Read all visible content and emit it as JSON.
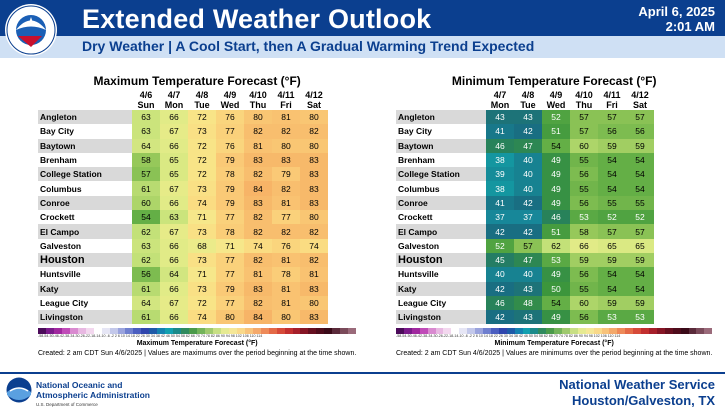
{
  "header": {
    "title": "Extended Weather Outlook",
    "date": "April 6, 2025",
    "time": "2:01 AM",
    "subtitle": "Dry Weather |  A Cool Start, then A Gradual Warming Trend Expected",
    "logo_text": "NATIONAL WEATHER SERVICE"
  },
  "max_panel": {
    "title": "Maximum Temperature Forecast (°F)",
    "dates": [
      "4/6",
      "4/7",
      "4/8",
      "4/9",
      "4/10",
      "4/11",
      "4/12"
    ],
    "days": [
      "Sun",
      "Mon",
      "Tue",
      "Wed",
      "Thu",
      "Fri",
      "Sat"
    ],
    "rows": [
      {
        "city": "Angleton",
        "values": [
          63,
          66,
          72,
          76,
          80,
          81,
          80
        ]
      },
      {
        "city": "Bay City",
        "values": [
          63,
          67,
          73,
          77,
          82,
          82,
          82
        ]
      },
      {
        "city": "Baytown",
        "values": [
          64,
          66,
          72,
          76,
          81,
          80,
          80
        ]
      },
      {
        "city": "Brenham",
        "values": [
          58,
          65,
          72,
          79,
          83,
          83,
          83
        ]
      },
      {
        "city": "College Station",
        "values": [
          57,
          65,
          72,
          78,
          82,
          79,
          83
        ]
      },
      {
        "city": "Columbus",
        "values": [
          61,
          67,
          73,
          79,
          84,
          82,
          83
        ]
      },
      {
        "city": "Conroe",
        "values": [
          60,
          66,
          74,
          79,
          83,
          81,
          83
        ]
      },
      {
        "city": "Crockett",
        "values": [
          54,
          63,
          71,
          77,
          82,
          77,
          80
        ]
      },
      {
        "city": "El Campo",
        "values": [
          62,
          67,
          73,
          78,
          82,
          82,
          82
        ]
      },
      {
        "city": "Galveston",
        "values": [
          63,
          66,
          68,
          71,
          74,
          76,
          74
        ]
      },
      {
        "city": "Houston",
        "values": [
          62,
          66,
          73,
          77,
          82,
          81,
          82
        ]
      },
      {
        "city": "Huntsville",
        "values": [
          56,
          64,
          71,
          77,
          81,
          78,
          81
        ]
      },
      {
        "city": "Katy",
        "values": [
          61,
          66,
          73,
          79,
          83,
          81,
          83
        ]
      },
      {
        "city": "League City",
        "values": [
          64,
          67,
          72,
          77,
          82,
          81,
          80
        ]
      },
      {
        "city": "Livingston",
        "values": [
          61,
          66,
          74,
          80,
          84,
          80,
          83
        ]
      }
    ],
    "bar_label": "Maximum Temperature Forecast (°F)",
    "note": "Created: 2 am CDT Sun 4/6/2025 | Values are maximums over the period beginning at the time shown."
  },
  "min_panel": {
    "title": "Minimum Temperature Forecast (°F)",
    "dates": [
      "4/7",
      "4/8",
      "4/9",
      "4/10",
      "4/11",
      "4/12"
    ],
    "days": [
      "Mon",
      "Tue",
      "Wed",
      "Thu",
      "Fri",
      "Sat"
    ],
    "rows": [
      {
        "city": "Angleton",
        "values": [
          43,
          43,
          52,
          57,
          57,
          57
        ]
      },
      {
        "city": "Bay City",
        "values": [
          41,
          42,
          51,
          57,
          56,
          56
        ]
      },
      {
        "city": "Baytown",
        "values": [
          46,
          47,
          54,
          60,
          59,
          59
        ]
      },
      {
        "city": "Brenham",
        "values": [
          38,
          40,
          49,
          55,
          54,
          54
        ]
      },
      {
        "city": "College Station",
        "values": [
          39,
          40,
          49,
          56,
          54,
          54
        ]
      },
      {
        "city": "Columbus",
        "values": [
          38,
          40,
          49,
          55,
          54,
          54
        ]
      },
      {
        "city": "Conroe",
        "values": [
          41,
          42,
          49,
          56,
          55,
          55
        ]
      },
      {
        "city": "Crockett",
        "values": [
          37,
          37,
          46,
          53,
          52,
          52
        ]
      },
      {
        "city": "El Campo",
        "values": [
          42,
          42,
          51,
          58,
          57,
          57
        ]
      },
      {
        "city": "Galveston",
        "values": [
          52,
          57,
          62,
          66,
          65,
          65
        ]
      },
      {
        "city": "Houston",
        "values": [
          45,
          47,
          53,
          59,
          59,
          59
        ]
      },
      {
        "city": "Huntsville",
        "values": [
          40,
          40,
          49,
          56,
          54,
          54
        ]
      },
      {
        "city": "Katy",
        "values": [
          42,
          43,
          50,
          55,
          54,
          54
        ]
      },
      {
        "city": "League City",
        "values": [
          46,
          48,
          54,
          60,
          59,
          59
        ]
      },
      {
        "city": "Livingston",
        "values": [
          42,
          43,
          49,
          56,
          53,
          53
        ]
      }
    ],
    "bar_label": "Minimum Temperature Forecast (°F)",
    "note": "Created: 2 am CDT Sun 4/6/2025 | Values are minimums over the period beginning at the time shown."
  },
  "colorbar_ticks": "-58-54-50-46-42-38-34-30-26-22-18-14-10 -6 -2  2  6 10 14 18 22 26 30 34 38 42 46 50 54 58 62 66 70 74 78 82 86 90 94 98 102 106 110 114",
  "footer": {
    "noaa_line1": "National Oceanic and",
    "noaa_line2": "Atmospheric Administration",
    "noaa_line3": "U.S. Department of Commerce",
    "office_line1": "National Weather Service",
    "office_line2": "Houston/Galveston, TX"
  },
  "colors": {
    "header_blue": "#0b3f8f",
    "band": "#cfe0f4"
  }
}
